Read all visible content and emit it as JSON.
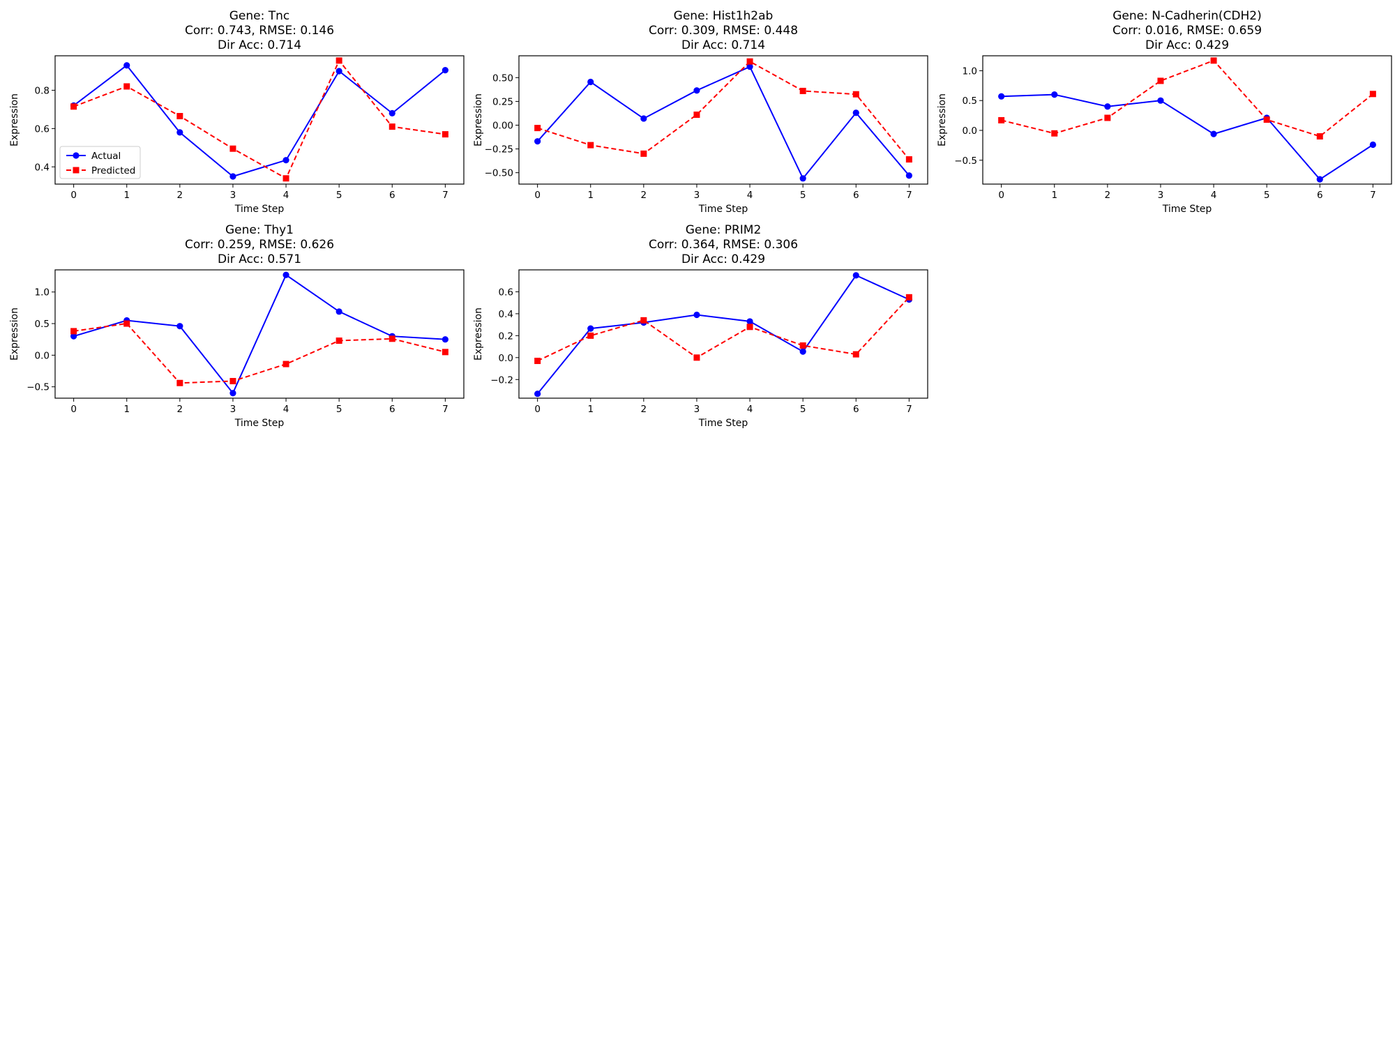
{
  "colors": {
    "actual": "#0000ff",
    "predicted": "#ff0000",
    "axes": "#000000",
    "background": "#ffffff"
  },
  "chart_data": [
    {
      "type": "line",
      "title": [
        "Gene: Tnc",
        "Corr: 0.743, RMSE: 0.146",
        "Dir Acc: 0.714"
      ],
      "xlabel": "Time Step",
      "ylabel": "Expression",
      "x": [
        0,
        1,
        2,
        3,
        4,
        5,
        6,
        7
      ],
      "xticks": [
        0,
        1,
        2,
        3,
        4,
        5,
        6,
        7
      ],
      "ylim": [
        0.31,
        0.98
      ],
      "yticks": [
        0.4,
        0.6,
        0.8
      ],
      "ytick_labels": [
        "0.4",
        "0.6",
        "0.8"
      ],
      "grid": false,
      "legend": {
        "placement": "lower-left",
        "entries": [
          "Actual",
          "Predicted"
        ]
      },
      "series": [
        {
          "name": "Actual",
          "style": "solid-circle",
          "values": [
            0.72,
            0.93,
            0.58,
            0.35,
            0.435,
            0.9,
            0.68,
            0.905
          ]
        },
        {
          "name": "Predicted",
          "style": "dashed-square",
          "values": [
            0.715,
            0.82,
            0.665,
            0.495,
            0.34,
            0.955,
            0.61,
            0.57
          ]
        }
      ]
    },
    {
      "type": "line",
      "title": [
        "Gene: Hist1h2ab",
        "Corr: 0.309, RMSE: 0.448",
        "Dir Acc: 0.714"
      ],
      "xlabel": "Time Step",
      "ylabel": "Expression",
      "x": [
        0,
        1,
        2,
        3,
        4,
        5,
        6,
        7
      ],
      "xticks": [
        0,
        1,
        2,
        3,
        4,
        5,
        6,
        7
      ],
      "ylim": [
        -0.62,
        0.73
      ],
      "yticks": [
        -0.5,
        -0.25,
        0.0,
        0.25,
        0.5
      ],
      "ytick_labels": [
        "−0.50",
        "−0.25",
        "0.00",
        "0.25",
        "0.50"
      ],
      "grid": false,
      "series": [
        {
          "name": "Actual",
          "style": "solid-circle",
          "values": [
            -0.17,
            0.455,
            0.07,
            0.365,
            0.615,
            -0.56,
            0.13,
            -0.53
          ]
        },
        {
          "name": "Predicted",
          "style": "dashed-square",
          "values": [
            -0.03,
            -0.21,
            -0.3,
            0.11,
            0.67,
            0.36,
            0.325,
            -0.36
          ]
        }
      ]
    },
    {
      "type": "line",
      "title": [
        "Gene: N-Cadherin(CDH2)",
        "Corr: 0.016, RMSE: 0.659",
        "Dir Acc: 0.429"
      ],
      "xlabel": "Time Step",
      "ylabel": "Expression",
      "x": [
        0,
        1,
        2,
        3,
        4,
        5,
        6,
        7
      ],
      "xticks": [
        0,
        1,
        2,
        3,
        4,
        5,
        6,
        7
      ],
      "ylim": [
        -0.9,
        1.25
      ],
      "yticks": [
        -0.5,
        0.0,
        0.5,
        1.0
      ],
      "ytick_labels": [
        "−0.5",
        "0.0",
        "0.5",
        "1.0"
      ],
      "grid": false,
      "series": [
        {
          "name": "Actual",
          "style": "solid-circle",
          "values": [
            0.57,
            0.6,
            0.4,
            0.5,
            -0.06,
            0.21,
            -0.82,
            -0.24
          ]
        },
        {
          "name": "Predicted",
          "style": "dashed-square",
          "values": [
            0.17,
            -0.05,
            0.21,
            0.83,
            1.17,
            0.18,
            -0.1,
            0.61
          ]
        }
      ]
    },
    {
      "type": "line",
      "title": [
        "Gene: Thy1",
        "Corr: 0.259, RMSE: 0.626",
        "Dir Acc: 0.571"
      ],
      "xlabel": "Time Step",
      "ylabel": "Expression",
      "x": [
        0,
        1,
        2,
        3,
        4,
        5,
        6,
        7
      ],
      "xticks": [
        0,
        1,
        2,
        3,
        4,
        5,
        6,
        7
      ],
      "ylim": [
        -0.68,
        1.35
      ],
      "yticks": [
        -0.5,
        0.0,
        0.5,
        1.0
      ],
      "ytick_labels": [
        "−0.5",
        "0.0",
        "0.5",
        "1.0"
      ],
      "grid": false,
      "series": [
        {
          "name": "Actual",
          "style": "solid-circle",
          "values": [
            0.3,
            0.55,
            0.46,
            -0.6,
            1.27,
            0.69,
            0.3,
            0.25
          ]
        },
        {
          "name": "Predicted",
          "style": "dashed-square",
          "values": [
            0.38,
            0.5,
            -0.44,
            -0.41,
            -0.14,
            0.23,
            0.26,
            0.05
          ]
        }
      ]
    },
    {
      "type": "line",
      "title": [
        "Gene: PRIM2",
        "Corr: 0.364, RMSE: 0.306",
        "Dir Acc: 0.429"
      ],
      "xlabel": "Time Step",
      "ylabel": "Expression",
      "x": [
        0,
        1,
        2,
        3,
        4,
        5,
        6,
        7
      ],
      "xticks": [
        0,
        1,
        2,
        3,
        4,
        5,
        6,
        7
      ],
      "ylim": [
        -0.37,
        0.8
      ],
      "yticks": [
        -0.2,
        0.0,
        0.2,
        0.4,
        0.6
      ],
      "ytick_labels": [
        "−0.2",
        "0.0",
        "0.2",
        "0.4",
        "0.6"
      ],
      "grid": false,
      "series": [
        {
          "name": "Actual",
          "style": "solid-circle",
          "values": [
            -0.33,
            0.265,
            0.32,
            0.39,
            0.33,
            0.055,
            0.75,
            0.53
          ]
        },
        {
          "name": "Predicted",
          "style": "dashed-square",
          "values": [
            -0.03,
            0.2,
            0.34,
            0.0,
            0.28,
            0.11,
            0.03,
            0.55
          ]
        }
      ]
    }
  ]
}
